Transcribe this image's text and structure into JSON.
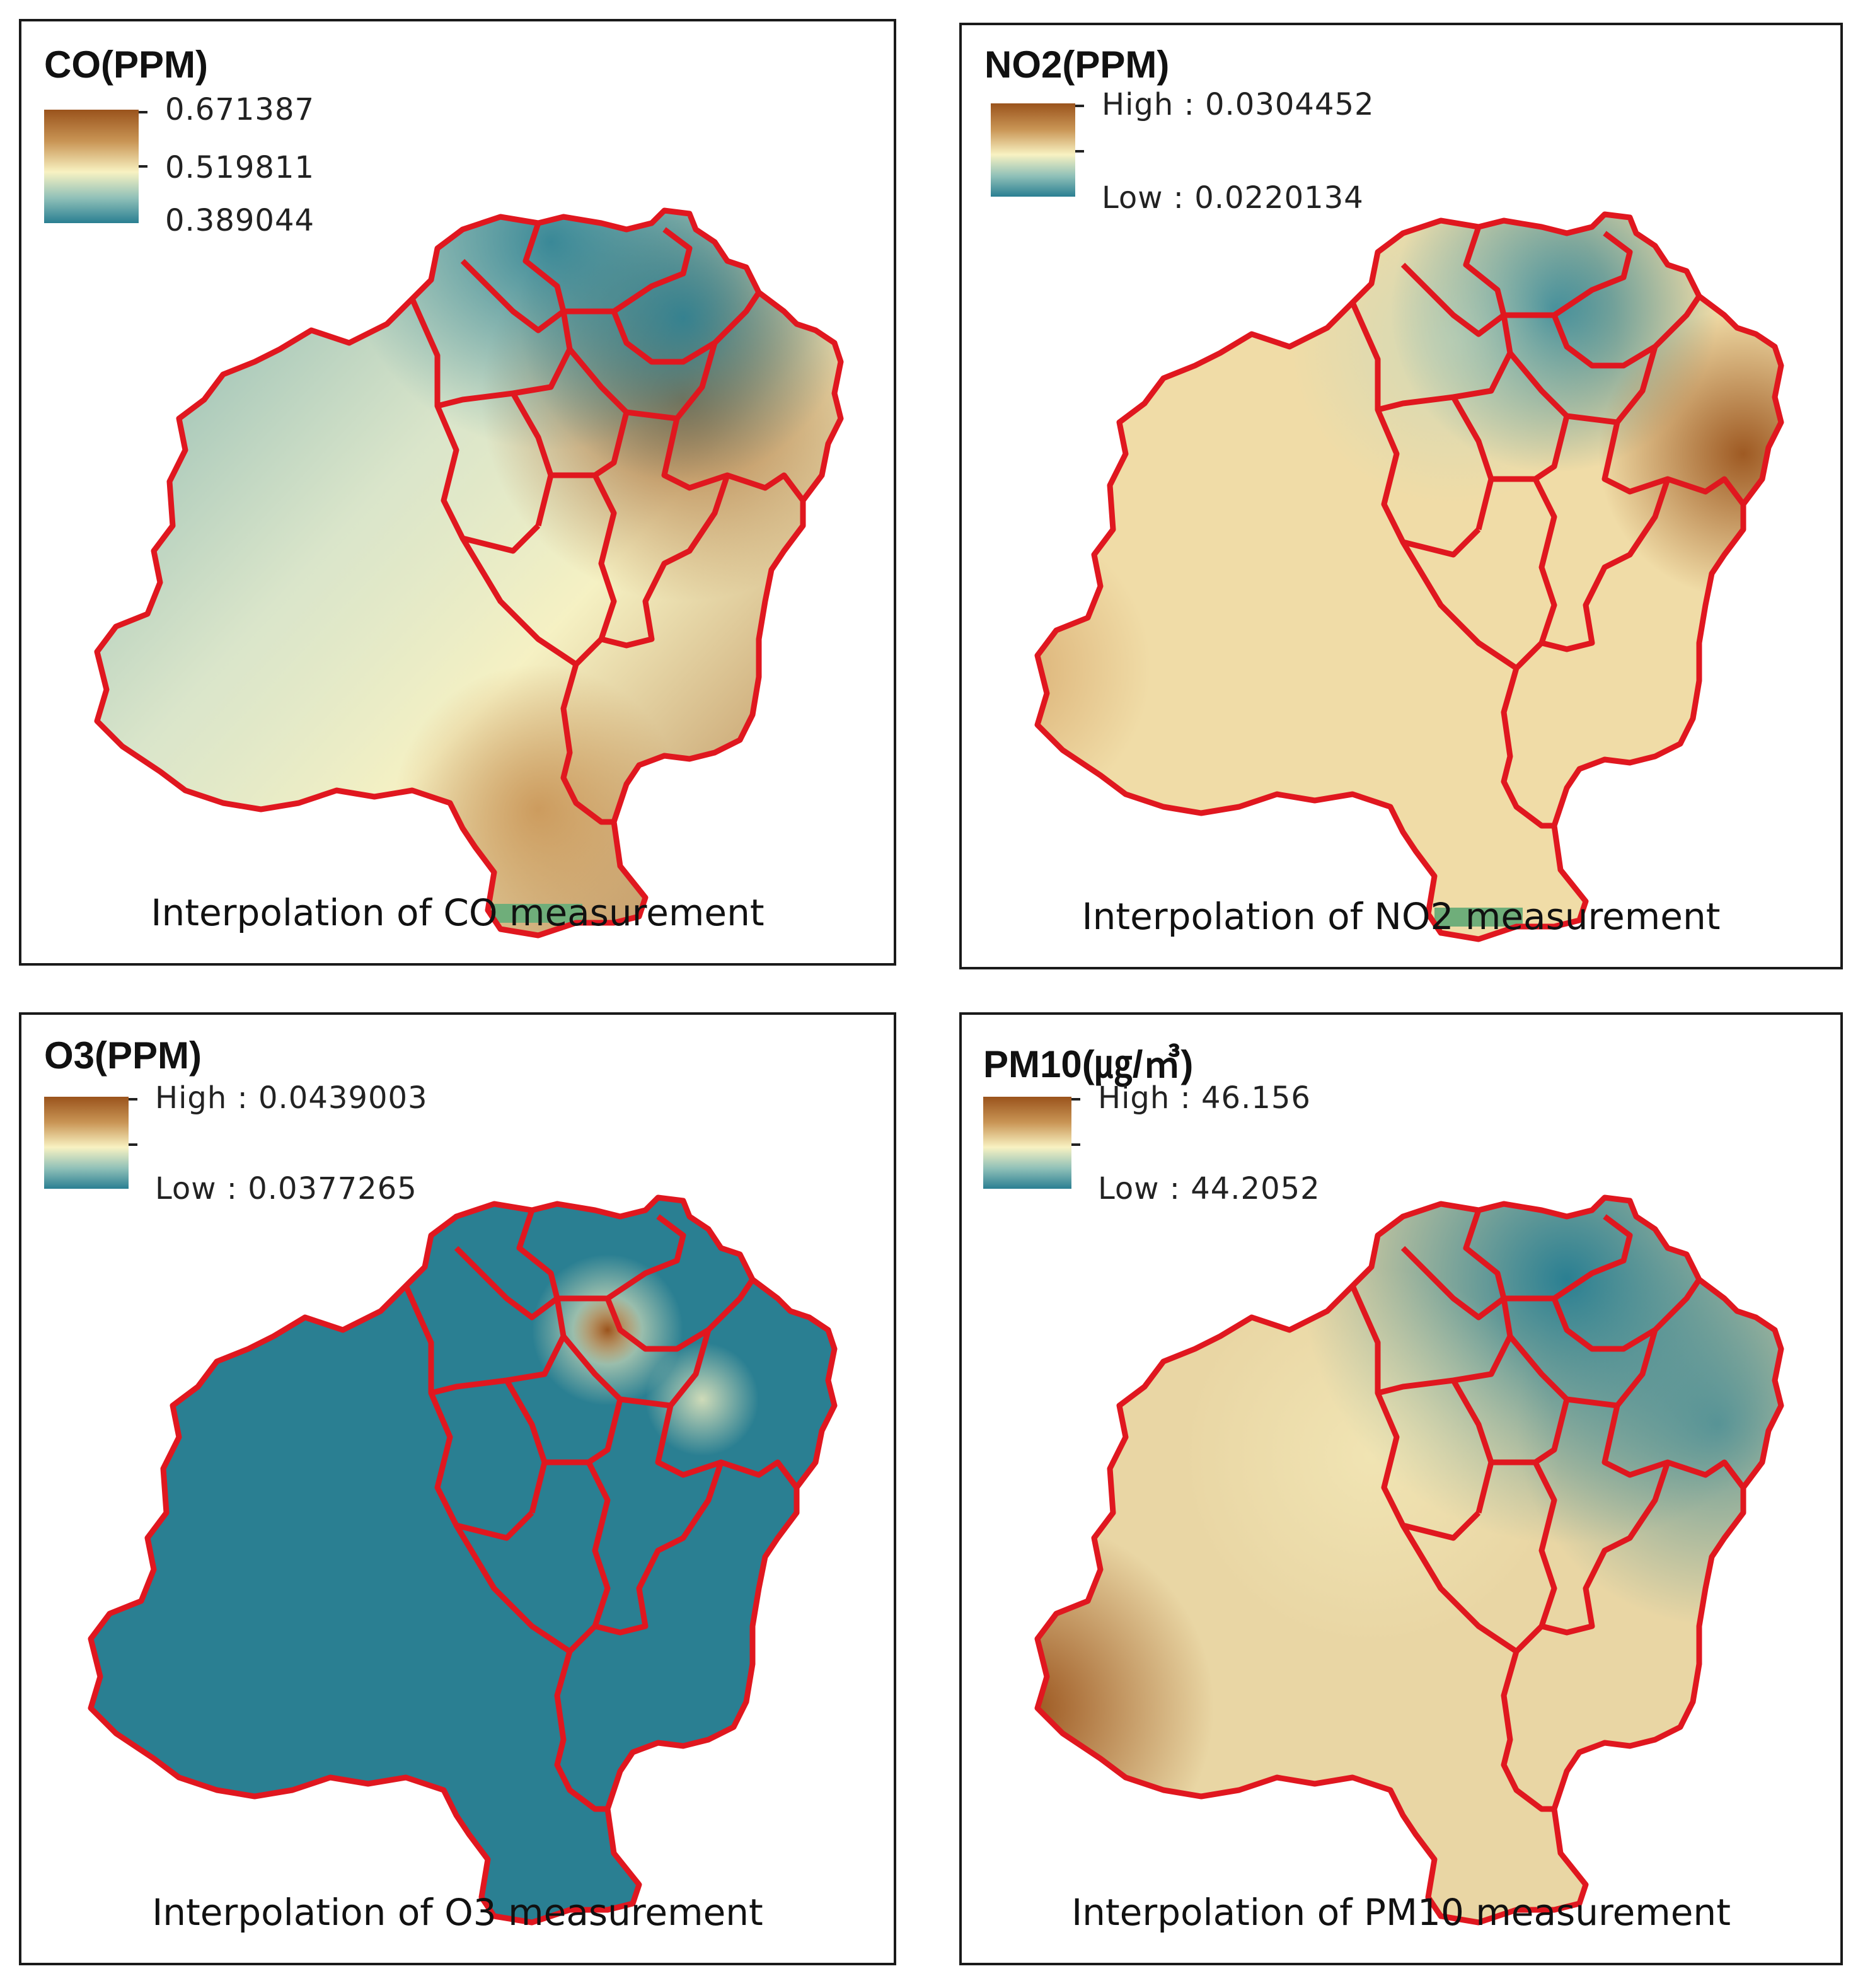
{
  "panels": [
    {
      "id": "co",
      "title": "CO(PPM)",
      "legend": {
        "top": "0.671387",
        "mid": "0.519811",
        "bottom": "0.389044"
      },
      "caption": "Interpolation of CO measurement"
    },
    {
      "id": "no2",
      "title": "NO2(PPM)",
      "legend": {
        "top": "High : 0.0304452",
        "bottom": "Low : 0.0220134"
      },
      "caption": "Interpolation of NO2 measurement"
    },
    {
      "id": "o3",
      "title": "O3(PPM)",
      "legend": {
        "top": "High : 0.0439003",
        "bottom": "Low : 0.0377265"
      },
      "caption": "Interpolation of O3 measurement"
    },
    {
      "id": "pm10",
      "title": "PM10(㎍/㎥)",
      "legend": {
        "top": "High : 46.156",
        "bottom": "Low : 44.2052"
      },
      "caption": "Interpolation of PM10 measurement"
    }
  ],
  "colors": {
    "high": "#9a531c",
    "mid": "#f8f2c2",
    "low": "#2a7f92",
    "boundary": "#e0171f",
    "frame": "#1a1a1a",
    "edge_patch": "#6fae7a"
  }
}
